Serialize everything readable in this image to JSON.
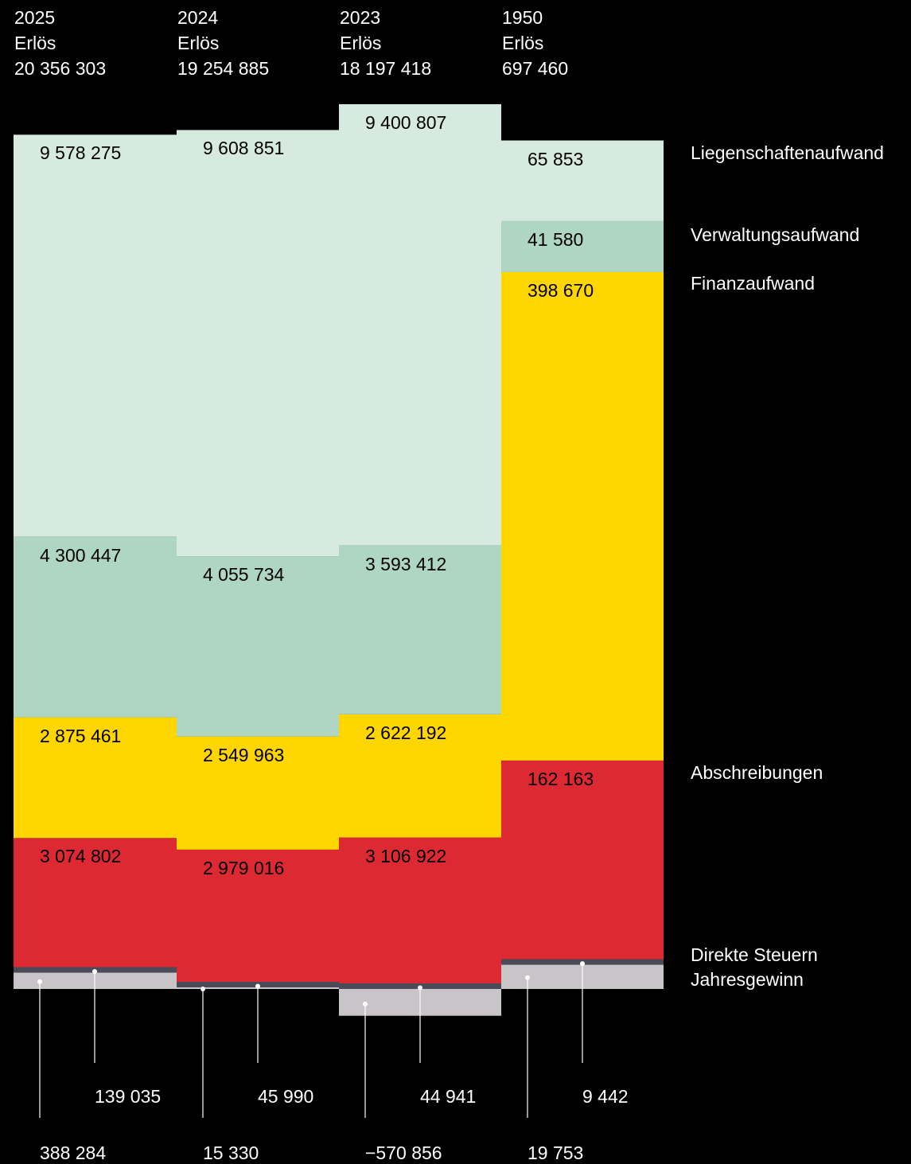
{
  "chart_data": {
    "type": "bar",
    "subtype": "stacked-column (100% of revenue)",
    "columns": [
      {
        "year": "2025",
        "revenue_label": "Erlös",
        "revenue": "20 356 303",
        "values": [
          9578275,
          4300447,
          2875461,
          3074802,
          139035,
          388284
        ],
        "labels": [
          "9 578 275",
          "4 300 447",
          "2 875 461",
          "3 074 802",
          "139 035",
          "388 284"
        ]
      },
      {
        "year": "2024",
        "revenue_label": "Erlös",
        "revenue": "19 254 885",
        "values": [
          9608851,
          4055734,
          2549963,
          2979016,
          45990,
          15330
        ],
        "labels": [
          "9 608 851",
          "4 055 734",
          "2 549 963",
          "2 979 016",
          "45 990",
          "15 330"
        ]
      },
      {
        "year": "2023",
        "revenue_label": "Erlös",
        "revenue": "18 197 418",
        "values": [
          9400807,
          3593412,
          2622192,
          3106922,
          44941,
          -570856
        ],
        "labels": [
          "9 400 807",
          "3 593 412",
          "2 622 192",
          "3 106 922",
          "44 941",
          "−570 856"
        ]
      },
      {
        "year": "1950",
        "revenue_label": "Erlös",
        "revenue": "697 460",
        "values": [
          65853,
          41580,
          398670,
          162163,
          9442,
          19753
        ],
        "labels": [
          "65 853",
          "41 580",
          "398 670",
          "162 163",
          "9 442",
          "19 753"
        ]
      }
    ],
    "categories": [
      {
        "name": "Liegenschaftenaufwand",
        "color": "#d6eadf"
      },
      {
        "name": "Verwaltungsaufwand",
        "color": "#aed6c2"
      },
      {
        "name": "Finanzaufwand",
        "color": "#ffd600"
      },
      {
        "name": "Abschreibungen",
        "color": "#dd2a32"
      },
      {
        "name": "Direkte Steuern",
        "color": "#4a4a58"
      },
      {
        "name": "Jahresgewinn",
        "color": "#c8c4c8"
      }
    ],
    "background": "#000000",
    "grid": false,
    "legend_position": "right"
  }
}
